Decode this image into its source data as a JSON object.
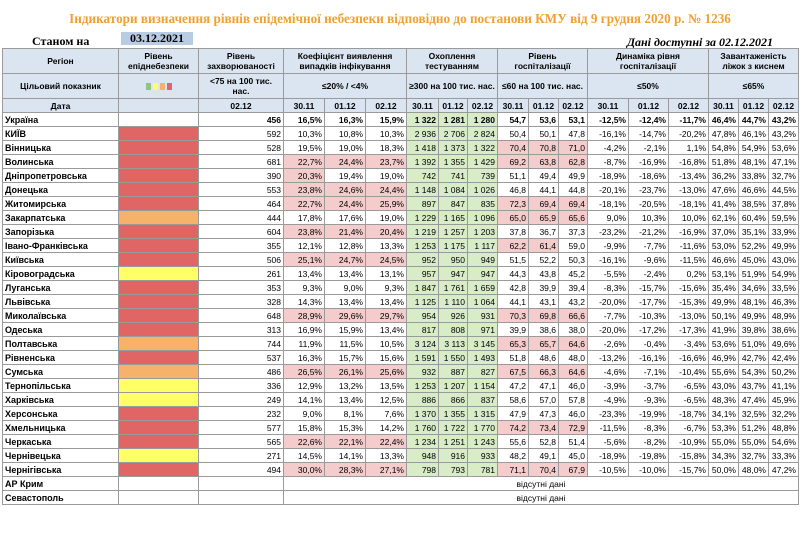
{
  "title": "Індикатори визначення рівнів епідемічної небезпеки відповідно до постанови КМУ від 9 грудня 2020 р. № 1236",
  "as_of_label": "Станом на",
  "as_of_date": "03.12.2021",
  "data_available": "Дані доступні за 02.12.2021",
  "headers": {
    "region": "Регіон",
    "danger_level": "Рівень епіднебезпеки",
    "incidence": "Рівень захворюваності",
    "detection": "Коефіцієнт виявлення випадків інфікування",
    "testing": "Охоплення тестуванням",
    "hosp": "Рівень госпіталізації",
    "hosp_dyn": "Динаміка рівня госпіталізації",
    "oxygen": "Завантаженість ліжок з киснем"
  },
  "target_label": "Цільовий показник",
  "targets": {
    "incidence": "<75 на 100 тис. нас.",
    "detection": "≤20% / <4%",
    "testing": "≥300 на 100 тис. нас.",
    "hosp": "≤60 на 100 тис. нас.",
    "hosp_dyn": "≤50%",
    "oxygen": "≤65%"
  },
  "date_label": "Дата",
  "dates": {
    "incidence": "02.12",
    "d1": "30.11",
    "d2": "01.12",
    "d3": "02.12"
  },
  "level_colors": {
    "red": "#e06666",
    "orange": "#f6b26b",
    "yellow": "#ffff66",
    "green": "#93c47d",
    "none": "#ffffff"
  },
  "cell_colors": {
    "over": "#f4cccc",
    "ok": "#d8ecc8"
  },
  "rows": [
    {
      "region": "Україна",
      "level": "none",
      "inc": "456",
      "det": [
        "16,5%",
        "16,3%",
        "15,9%"
      ],
      "tst": [
        "1 322",
        "1 281",
        "1 280"
      ],
      "hsp": [
        "54,7",
        "53,6",
        "53,1"
      ],
      "dyn": [
        "-12,5%",
        "-12,4%",
        "-11,7%"
      ],
      "oxy": [
        "46,4%",
        "44,7%",
        "43,2%"
      ]
    },
    {
      "region": "КИЇВ",
      "level": "red",
      "inc": "592",
      "det": [
        "10,3%",
        "10,8%",
        "10,3%"
      ],
      "tst": [
        "2 936",
        "2 706",
        "2 824"
      ],
      "hsp": [
        "50,4",
        "50,1",
        "47,8"
      ],
      "dyn": [
        "-16,1%",
        "-14,7%",
        "-20,2%"
      ],
      "oxy": [
        "47,8%",
        "46,1%",
        "43,2%"
      ]
    },
    {
      "region": "Вінницька",
      "level": "red",
      "inc": "528",
      "det": [
        "19,5%",
        "19,0%",
        "18,3%"
      ],
      "tst": [
        "1 418",
        "1 373",
        "1 322"
      ],
      "hsp": [
        "70,4",
        "70,8",
        "71,0"
      ],
      "dyn": [
        "-4,2%",
        "-2,1%",
        "1,1%"
      ],
      "oxy": [
        "54,8%",
        "54,9%",
        "53,6%"
      ]
    },
    {
      "region": "Волинська",
      "level": "red",
      "inc": "681",
      "det": [
        "22,7%",
        "24,4%",
        "23,7%"
      ],
      "tst": [
        "1 392",
        "1 355",
        "1 429"
      ],
      "hsp": [
        "69,2",
        "63,8",
        "62,8"
      ],
      "dyn": [
        "-8,7%",
        "-16,9%",
        "-16,8%"
      ],
      "oxy": [
        "51,8%",
        "48,1%",
        "47,1%"
      ]
    },
    {
      "region": "Дніпропетровська",
      "level": "red",
      "inc": "390",
      "det": [
        "20,3%",
        "19,4%",
        "19,0%"
      ],
      "tst": [
        "742",
        "741",
        "739"
      ],
      "hsp": [
        "51,1",
        "49,4",
        "49,9"
      ],
      "dyn": [
        "-18,9%",
        "-18,6%",
        "-13,4%"
      ],
      "oxy": [
        "36,2%",
        "33,8%",
        "32,7%"
      ]
    },
    {
      "region": "Донецька",
      "level": "red",
      "inc": "553",
      "det": [
        "23,8%",
        "24,6%",
        "24,4%"
      ],
      "tst": [
        "1 148",
        "1 084",
        "1 026"
      ],
      "hsp": [
        "46,8",
        "44,1",
        "44,8"
      ],
      "dyn": [
        "-20,1%",
        "-23,7%",
        "-13,0%"
      ],
      "oxy": [
        "47,6%",
        "46,6%",
        "44,5%"
      ]
    },
    {
      "region": "Житомирська",
      "level": "red",
      "inc": "464",
      "det": [
        "22,7%",
        "24,4%",
        "25,9%"
      ],
      "tst": [
        "897",
        "847",
        "835"
      ],
      "hsp": [
        "72,3",
        "69,4",
        "69,4"
      ],
      "dyn": [
        "-18,1%",
        "-20,5%",
        "-18,1%"
      ],
      "oxy": [
        "41,4%",
        "38,5%",
        "37,8%"
      ]
    },
    {
      "region": "Закарпатська",
      "level": "orange",
      "inc": "444",
      "det": [
        "17,8%",
        "17,6%",
        "19,0%"
      ],
      "tst": [
        "1 229",
        "1 165",
        "1 096"
      ],
      "hsp": [
        "65,0",
        "65,9",
        "65,6"
      ],
      "dyn": [
        "9,0%",
        "10,3%",
        "10,0%"
      ],
      "oxy": [
        "62,1%",
        "60,4%",
        "59,5%"
      ]
    },
    {
      "region": "Запорізька",
      "level": "red",
      "inc": "604",
      "det": [
        "23,8%",
        "21,4%",
        "20,4%"
      ],
      "tst": [
        "1 219",
        "1 257",
        "1 203"
      ],
      "hsp": [
        "37,8",
        "36,7",
        "37,3"
      ],
      "dyn": [
        "-23,2%",
        "-21,2%",
        "-16,9%"
      ],
      "oxy": [
        "37,0%",
        "35,1%",
        "33,9%"
      ]
    },
    {
      "region": "Івано-Франківська",
      "level": "red",
      "inc": "355",
      "det": [
        "12,1%",
        "12,8%",
        "13,3%"
      ],
      "tst": [
        "1 253",
        "1 175",
        "1 117"
      ],
      "hsp": [
        "62,2",
        "61,4",
        "59,0"
      ],
      "dyn": [
        "-9,9%",
        "-7,7%",
        "-11,6%"
      ],
      "oxy": [
        "53,0%",
        "52,2%",
        "49,9%"
      ]
    },
    {
      "region": "Київська",
      "level": "red",
      "inc": "506",
      "det": [
        "25,1%",
        "24,7%",
        "24,5%"
      ],
      "tst": [
        "952",
        "950",
        "949"
      ],
      "hsp": [
        "51,5",
        "52,2",
        "50,3"
      ],
      "dyn": [
        "-16,1%",
        "-9,6%",
        "-11,5%"
      ],
      "oxy": [
        "46,6%",
        "45,0%",
        "43,0%"
      ]
    },
    {
      "region": "Кіровоградська",
      "level": "yellow",
      "inc": "261",
      "det": [
        "13,4%",
        "13,4%",
        "13,1%"
      ],
      "tst": [
        "957",
        "947",
        "947"
      ],
      "hsp": [
        "44,3",
        "43,8",
        "45,2"
      ],
      "dyn": [
        "-5,5%",
        "-2,4%",
        "0,2%"
      ],
      "oxy": [
        "53,1%",
        "51,9%",
        "54,9%"
      ]
    },
    {
      "region": "Луганська",
      "level": "red",
      "inc": "353",
      "det": [
        "9,3%",
        "9,0%",
        "9,3%"
      ],
      "tst": [
        "1 847",
        "1 761",
        "1 659"
      ],
      "hsp": [
        "42,8",
        "39,9",
        "39,4"
      ],
      "dyn": [
        "-8,3%",
        "-15,7%",
        "-15,6%"
      ],
      "oxy": [
        "35,4%",
        "34,6%",
        "33,5%"
      ]
    },
    {
      "region": "Львівська",
      "level": "red",
      "inc": "328",
      "det": [
        "14,3%",
        "13,4%",
        "13,4%"
      ],
      "tst": [
        "1 125",
        "1 110",
        "1 064"
      ],
      "hsp": [
        "44,1",
        "43,1",
        "43,2"
      ],
      "dyn": [
        "-20,0%",
        "-17,7%",
        "-15,3%"
      ],
      "oxy": [
        "49,9%",
        "48,1%",
        "46,3%"
      ]
    },
    {
      "region": "Миколаївська",
      "level": "red",
      "inc": "648",
      "det": [
        "28,9%",
        "29,6%",
        "29,7%"
      ],
      "tst": [
        "954",
        "926",
        "931"
      ],
      "hsp": [
        "70,3",
        "69,8",
        "66,6"
      ],
      "dyn": [
        "-7,7%",
        "-10,3%",
        "-13,0%"
      ],
      "oxy": [
        "50,1%",
        "49,9%",
        "48,9%"
      ]
    },
    {
      "region": "Одеська",
      "level": "red",
      "inc": "313",
      "det": [
        "16,9%",
        "15,9%",
        "13,4%"
      ],
      "tst": [
        "817",
        "808",
        "971"
      ],
      "hsp": [
        "39,9",
        "38,6",
        "38,0"
      ],
      "dyn": [
        "-20,0%",
        "-17,2%",
        "-17,3%"
      ],
      "oxy": [
        "41,9%",
        "39,8%",
        "38,6%"
      ]
    },
    {
      "region": "Полтавська",
      "level": "orange",
      "inc": "744",
      "det": [
        "11,9%",
        "11,5%",
        "10,5%"
      ],
      "tst": [
        "3 124",
        "3 113",
        "3 145"
      ],
      "hsp": [
        "65,3",
        "65,7",
        "64,6"
      ],
      "dyn": [
        "-2,6%",
        "-0,4%",
        "-3,4%"
      ],
      "oxy": [
        "53,6%",
        "51,0%",
        "49,6%"
      ]
    },
    {
      "region": "Рівненська",
      "level": "red",
      "inc": "537",
      "det": [
        "16,3%",
        "15,7%",
        "15,6%"
      ],
      "tst": [
        "1 591",
        "1 550",
        "1 493"
      ],
      "hsp": [
        "51,8",
        "48,6",
        "48,0"
      ],
      "dyn": [
        "-13,2%",
        "-16,1%",
        "-16,6%"
      ],
      "oxy": [
        "46,9%",
        "42,7%",
        "42,4%"
      ]
    },
    {
      "region": "Сумська",
      "level": "orange",
      "inc": "486",
      "det": [
        "26,5%",
        "26,1%",
        "25,6%"
      ],
      "tst": [
        "932",
        "887",
        "827"
      ],
      "hsp": [
        "67,5",
        "66,3",
        "64,6"
      ],
      "dyn": [
        "-4,6%",
        "-7,1%",
        "-10,4%"
      ],
      "oxy": [
        "55,6%",
        "54,3%",
        "50,2%"
      ]
    },
    {
      "region": "Тернопільська",
      "level": "yellow",
      "inc": "336",
      "det": [
        "12,9%",
        "13,2%",
        "13,5%"
      ],
      "tst": [
        "1 253",
        "1 207",
        "1 154"
      ],
      "hsp": [
        "47,2",
        "47,1",
        "46,0"
      ],
      "dyn": [
        "-3,9%",
        "-3,7%",
        "-6,5%"
      ],
      "oxy": [
        "43,0%",
        "43,7%",
        "41,1%"
      ]
    },
    {
      "region": "Харківська",
      "level": "yellow",
      "inc": "249",
      "det": [
        "14,1%",
        "13,4%",
        "12,5%"
      ],
      "tst": [
        "886",
        "866",
        "837"
      ],
      "hsp": [
        "58,6",
        "57,0",
        "57,8"
      ],
      "dyn": [
        "-4,9%",
        "-9,3%",
        "-6,5%"
      ],
      "oxy": [
        "48,3%",
        "47,4%",
        "45,9%"
      ]
    },
    {
      "region": "Херсонська",
      "level": "red",
      "inc": "232",
      "det": [
        "9,0%",
        "8,1%",
        "7,6%"
      ],
      "tst": [
        "1 370",
        "1 355",
        "1 315"
      ],
      "hsp": [
        "47,9",
        "47,3",
        "46,0"
      ],
      "dyn": [
        "-23,3%",
        "-19,9%",
        "-18,7%"
      ],
      "oxy": [
        "34,1%",
        "32,5%",
        "32,2%"
      ]
    },
    {
      "region": "Хмельницька",
      "level": "red",
      "inc": "577",
      "det": [
        "15,8%",
        "15,3%",
        "14,2%"
      ],
      "tst": [
        "1 760",
        "1 722",
        "1 770"
      ],
      "hsp": [
        "74,2",
        "73,4",
        "72,9"
      ],
      "dyn": [
        "-11,5%",
        "-8,3%",
        "-6,7%"
      ],
      "oxy": [
        "53,3%",
        "51,2%",
        "48,8%"
      ]
    },
    {
      "region": "Черкаська",
      "level": "red",
      "inc": "565",
      "det": [
        "22,6%",
        "22,1%",
        "22,4%"
      ],
      "tst": [
        "1 234",
        "1 251",
        "1 243"
      ],
      "hsp": [
        "55,6",
        "52,8",
        "51,4"
      ],
      "dyn": [
        "-5,6%",
        "-8,2%",
        "-10,9%"
      ],
      "oxy": [
        "55,0%",
        "55,0%",
        "54,6%"
      ]
    },
    {
      "region": "Чернівецька",
      "level": "yellow",
      "inc": "271",
      "det": [
        "14,5%",
        "14,1%",
        "13,3%"
      ],
      "tst": [
        "948",
        "916",
        "933"
      ],
      "hsp": [
        "48,2",
        "49,1",
        "45,0"
      ],
      "dyn": [
        "-18,9%",
        "-19,8%",
        "-15,8%"
      ],
      "oxy": [
        "34,3%",
        "32,7%",
        "33,3%"
      ]
    },
    {
      "region": "Чернігівська",
      "level": "red",
      "inc": "494",
      "det": [
        "30,0%",
        "28,3%",
        "27,1%"
      ],
      "tst": [
        "798",
        "793",
        "781"
      ],
      "hsp": [
        "71,1",
        "70,4",
        "67,9"
      ],
      "dyn": [
        "-10,5%",
        "-10,0%",
        "-15,7%"
      ],
      "oxy": [
        "50,0%",
        "48,0%",
        "47,2%"
      ]
    }
  ],
  "missing_rows": [
    {
      "region": "АР Крим",
      "note": "відсутні дані"
    },
    {
      "region": "Севастополь",
      "note": "відсутні дані"
    }
  ]
}
